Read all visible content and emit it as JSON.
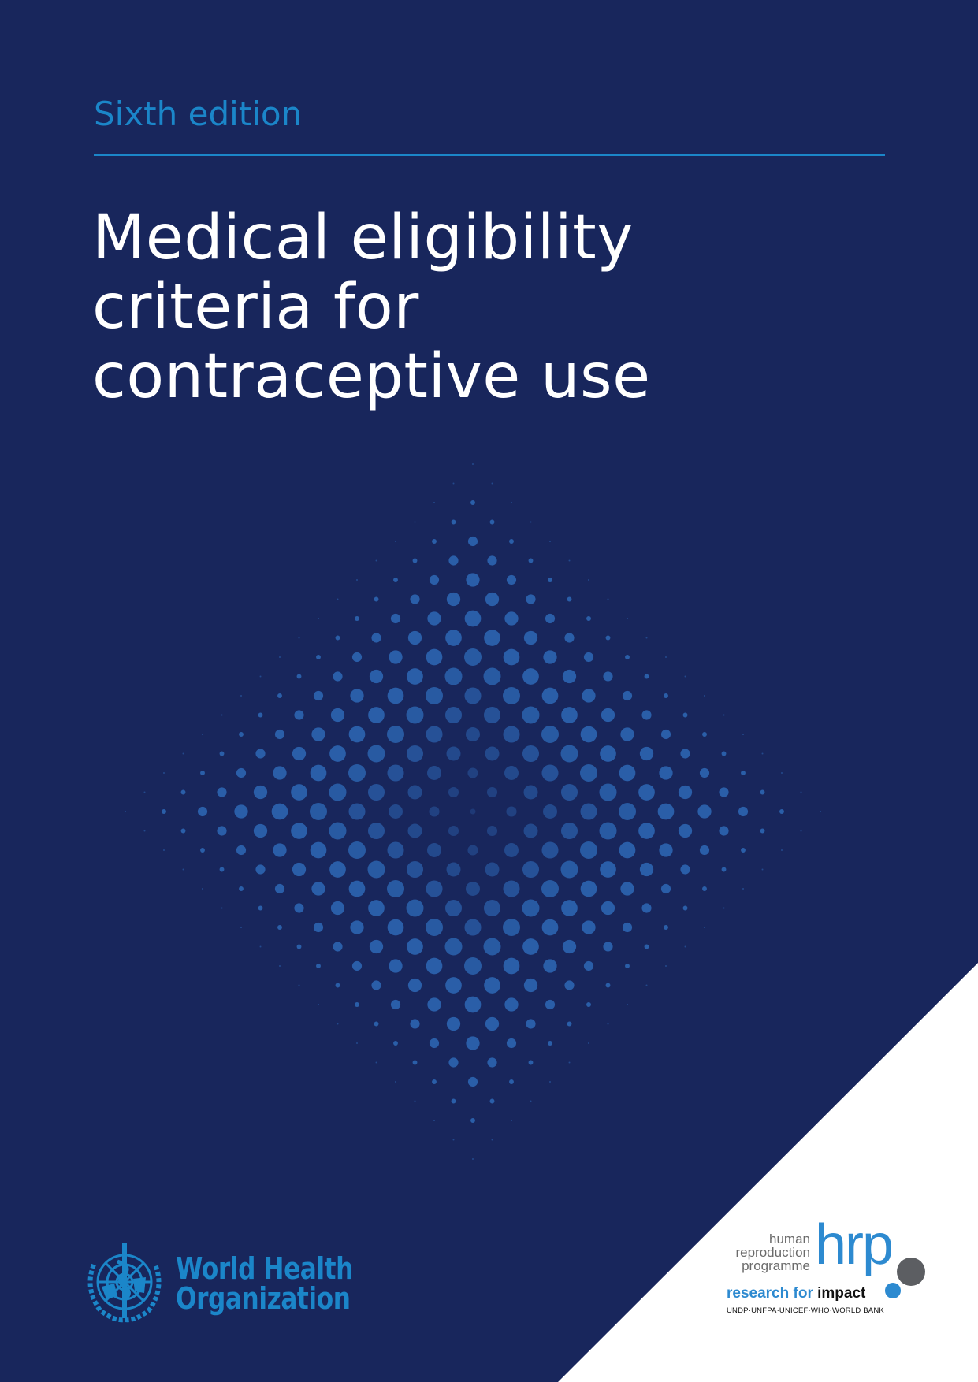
{
  "cover": {
    "edition": "Sixth edition",
    "title_lines": [
      "Medical eligibility",
      "criteria for",
      "contraceptive use"
    ]
  },
  "colors": {
    "background": "#18265c",
    "accent": "#1b86c9",
    "dots": "#2a5ea8",
    "corner": "#ffffff"
  },
  "who_logo": {
    "line1": "World Health",
    "line2": "Organization",
    "icon": "who-emblem-icon"
  },
  "hrp_logo": {
    "small_lines": [
      "human",
      "reproduction",
      "programme"
    ],
    "big": "hrp",
    "tagline_a": "research for ",
    "tagline_b": "impact",
    "partners": "UNDP·UNFPA·UNICEF·WHO·WORLD BANK"
  }
}
